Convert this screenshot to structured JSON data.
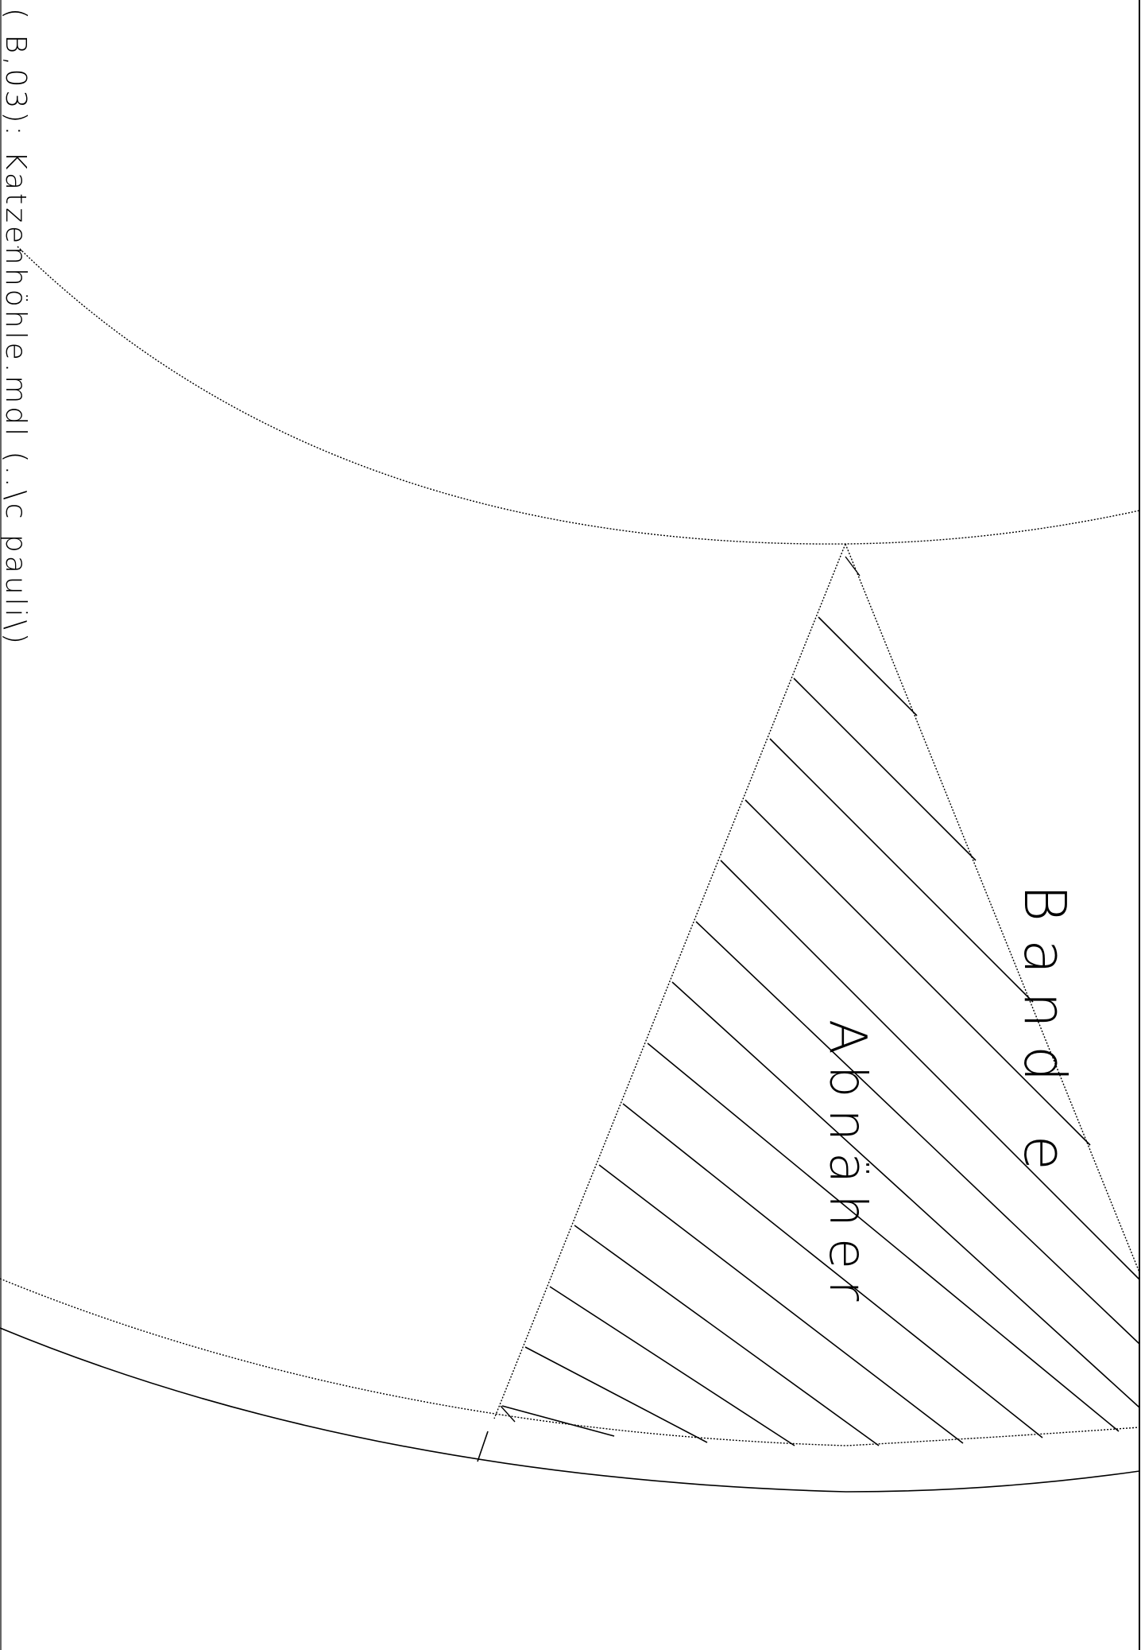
{
  "header_text": "( B,03): Katzenhöhle.mdl (..\\c pauli\\)",
  "labels": {
    "abnaeher": "Abnäher",
    "bande": "Band e"
  },
  "style": {
    "line_color": "#000000",
    "background": "#ffffff"
  }
}
